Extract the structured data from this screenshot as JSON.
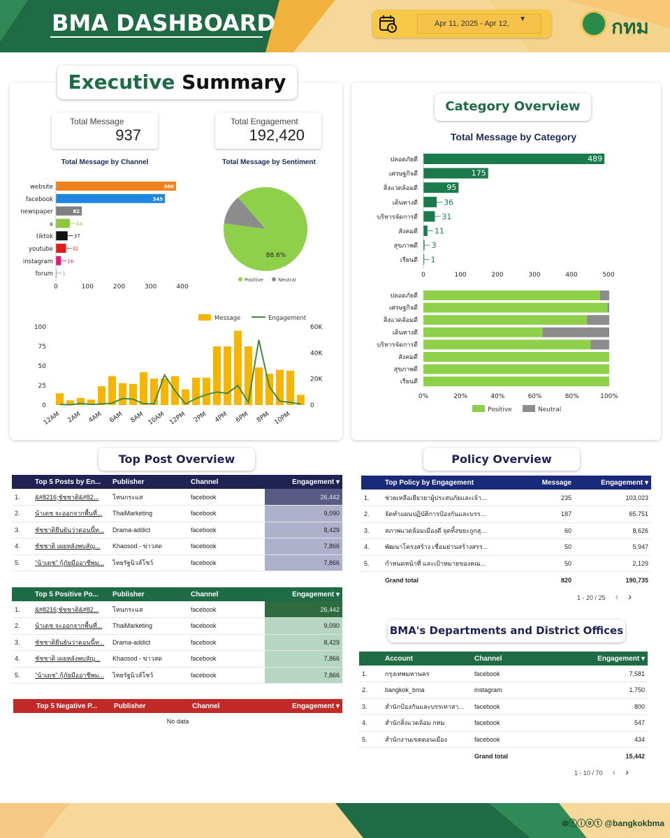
{
  "header": {
    "title": "BMA DASHBOARD",
    "date_range": "Apr 11, 2025 - Apr 12,",
    "logo_text": "กทม"
  },
  "exec": {
    "title_a": "Executive",
    "title_b": "Summary",
    "kpi_message_label": "Total Message",
    "kpi_message_value": "937",
    "kpi_engagement_label": "Total Engagement",
    "kpi_engagement_value": "192,420",
    "channel_chart_title": "Total Message by Channel",
    "sentiment_chart_title": "Total Message by Sentiment"
  },
  "category": {
    "title": "Category Overview",
    "chart_title": "Total Message by Category"
  },
  "top_post": {
    "title": "Top Post Overview",
    "table1": {
      "headers": [
        "Top 5 Posts by En...",
        "Publisher",
        "Channel",
        "Engagement"
      ],
      "rows": [
        [
          "1.",
          "&#8216;ชัชชาติ&#82...",
          "โหนกระแส",
          "facebook",
          "26,442"
        ],
        [
          "2.",
          "น้าเดช จะออกจากพื้นที่...",
          "ThaiMarketing",
          "facebook",
          "9,090"
        ],
        [
          "3.",
          "ชัชชาติยืนยันว่าตอนนี้ห...",
          "Drama-addict",
          "facebook",
          "8,429"
        ],
        [
          "4.",
          "ชัชชาติ เผยหลังพบสัญ...",
          "Khaosod - ข่าวสด",
          "facebook",
          "7,866"
        ],
        [
          "5.",
          "\"น้าเดช\" กู้ภัยมืออาชีพม...",
          "ไทยรัฐนิวส์โชว์",
          "facebook",
          "7,866"
        ]
      ]
    },
    "table2": {
      "headers": [
        "Top 5 Positive Po...",
        "Publisher",
        "Channel",
        "Engagement"
      ],
      "rows": [
        [
          "1.",
          "&#8216;ชัชชาติ&#82...",
          "โหนกระแส",
          "facebook",
          "26,442"
        ],
        [
          "2.",
          "น้าเดช จะออกจากพื้นที่...",
          "ThaiMarketing",
          "facebook",
          "9,090"
        ],
        [
          "3.",
          "ชัชชาติยืนยันว่าตอนนี้ห...",
          "Drama-addict",
          "facebook",
          "8,429"
        ],
        [
          "4.",
          "ชัชชาติ เผยหลังพบสัญ...",
          "Khaosod - ข่าวสด",
          "facebook",
          "7,866"
        ],
        [
          "5.",
          "\"น้าเดช\" กู้ภัยมืออาชีพม...",
          "ไทยรัฐนิวส์โชว์",
          "facebook",
          "7,866"
        ]
      ]
    },
    "table3": {
      "headers": [
        "Top 5 Negative P...",
        "Publisher",
        "Channel",
        "Engagement"
      ],
      "empty_text": "No data"
    }
  },
  "policy": {
    "title": "Policy Overview",
    "headers": [
      "Top Policy by Engagement",
      "Message",
      "Engagement"
    ],
    "rows": [
      [
        "1.",
        "ช่วยเหลือเยียวยาผู้ประสบภัยและเจ้า...",
        "235",
        "103,023"
      ],
      [
        "2.",
        "จัดทำแผนปฏิบัติการป้องกันและบรร...",
        "187",
        "65,751"
      ],
      [
        "3.",
        "สภาพแวดล้อมเมืองดี จุดทิ้งขยะถูกสุ...",
        "60",
        "8,626"
      ],
      [
        "4.",
        "พัฒนาโครงสร้าง เชื่อมย่านสร้างสรร...",
        "50",
        "5,947"
      ],
      [
        "5.",
        "กำหนดหน้าที่ และเป้าหมายของคณ...",
        "50",
        "2,129"
      ]
    ],
    "total_label": "Grand total",
    "total_message": "820",
    "total_engagement": "190,735",
    "pager": "1 - 20 / 25"
  },
  "departments": {
    "title": "BMA's Departments and District Offices",
    "headers": [
      "Account",
      "Channel",
      "Engagement"
    ],
    "rows": [
      [
        "1.",
        "กรุงเทพมหานคร",
        "facebook",
        "7,581"
      ],
      [
        "2.",
        "bangkok_bma",
        "instagram",
        "1,750"
      ],
      [
        "3.",
        "สำนักป้องกันและบรรเทาสา...",
        "facebook",
        "800"
      ],
      [
        "4.",
        "สำนักสิ่งแวดล้อม กทม",
        "facebook",
        "547"
      ],
      [
        "5.",
        "สำนักงานเขตดอนเมือง",
        "facebook",
        "434"
      ]
    ],
    "total_label": "Grand total",
    "total_engagement": "15,442",
    "pager": "1 - 10 / 70"
  },
  "footer": {
    "social_handle": "@bangkokbma"
  },
  "colors": {
    "dark_green": "#1e6b45",
    "bar_green": "#1a7a4c",
    "light_green": "#8ed04a",
    "gray": "#8c8c8c",
    "navy": "#1f2252",
    "red": "#c22a2a",
    "orange": "#f0821e",
    "gold": "#f7b500"
  },
  "chart_data": [
    {
      "type": "bar",
      "title": "Total Message by Channel",
      "orientation": "horizontal",
      "categories": [
        "website",
        "facebook",
        "newspaper",
        "x",
        "tiktok",
        "youtube",
        "instagram",
        "forum"
      ],
      "values": [
        380,
        345,
        82,
        44,
        37,
        32,
        16,
        1
      ],
      "colors": [
        "#f0821e",
        "#1f86e0",
        "#7f7f7f",
        "#8ec63f",
        "#111111",
        "#e31b1b",
        "#e3197a",
        "#999999"
      ],
      "xticks": [
        0,
        100,
        200,
        300,
        400
      ],
      "xlim": [
        0,
        400
      ]
    },
    {
      "type": "pie",
      "title": "Total Message by Sentiment",
      "labels": [
        "Positive",
        "Neutral"
      ],
      "values": [
        88.6,
        11.4
      ],
      "shown_label": "88.6%",
      "colors": [
        "#8ed04a",
        "#8c8c8c"
      ]
    },
    {
      "type": "bar",
      "subtype": "combo-bar-line",
      "categories": [
        "12AM",
        "1AM",
        "2AM",
        "3AM",
        "4AM",
        "5AM",
        "6AM",
        "7AM",
        "8AM",
        "9AM",
        "10AM",
        "11AM",
        "12PM",
        "1PM",
        "2PM",
        "3PM",
        "4PM",
        "5PM",
        "6PM",
        "7PM",
        "8PM",
        "9PM",
        "10PM",
        "11PM"
      ],
      "xtick_labels": [
        "12AM",
        "2AM",
        "4AM",
        "6AM",
        "8AM",
        "10AM",
        "12PM",
        "2PM",
        "4PM",
        "6PM",
        "8PM",
        "10PM"
      ],
      "series": [
        {
          "name": "Message",
          "axis": "left",
          "values": [
            15,
            6,
            9,
            7,
            24,
            37,
            28,
            27,
            42,
            34,
            34,
            37,
            20,
            35,
            35,
            75,
            75,
            95,
            75,
            48,
            40,
            45,
            44,
            13
          ]
        },
        {
          "name": "Engagement",
          "axis": "right",
          "values": [
            500,
            200,
            1200,
            500,
            900,
            1500,
            5000,
            4500,
            1000,
            1000,
            23000,
            11000,
            800,
            5000,
            8000,
            10000,
            9000,
            15000,
            2000,
            50000,
            14000,
            3000,
            2000,
            800
          ]
        }
      ],
      "yticks_left": [
        0,
        25,
        50,
        75,
        100
      ],
      "yticks_right": [
        "0",
        "20K",
        "40K",
        "60K"
      ],
      "ylim_left": [
        0,
        100
      ],
      "ylim_right": [
        0,
        60000
      ],
      "legend": "top-right"
    },
    {
      "type": "bar",
      "title": "Total Message by Category",
      "orientation": "horizontal",
      "categories": [
        "ปลอดภัยดี",
        "เศรษฐกิจดี",
        "สิ่งแวดล้อมดี",
        "เดินทางดี",
        "บริหารจัดการดี",
        "สังคมดี",
        "สุขภาพดี",
        "เรียนดี"
      ],
      "values": [
        489,
        175,
        95,
        36,
        31,
        11,
        3,
        1
      ],
      "xticks": [
        0,
        100,
        200,
        300,
        400,
        500
      ],
      "xlim": [
        0,
        500
      ]
    },
    {
      "type": "bar",
      "subtype": "stacked-100",
      "orientation": "horizontal",
      "categories": [
        "ปลอดภัยดี",
        "เศรษฐกิจดี",
        "สิ่งแวดล้อมดี",
        "เดินทางดี",
        "บริหารจัดการดี",
        "สังคมดี",
        "สุขภาพดี",
        "เรียนดี"
      ],
      "series": [
        {
          "name": "Positive",
          "values": [
            95,
            99,
            88,
            64,
            90,
            100,
            100,
            100
          ]
        },
        {
          "name": "Neutral",
          "values": [
            5,
            1,
            12,
            36,
            10,
            0,
            0,
            0
          ]
        }
      ],
      "xticks": [
        "0%",
        "20%",
        "40%",
        "60%",
        "80%",
        "100%"
      ],
      "legend": "bottom"
    }
  ]
}
